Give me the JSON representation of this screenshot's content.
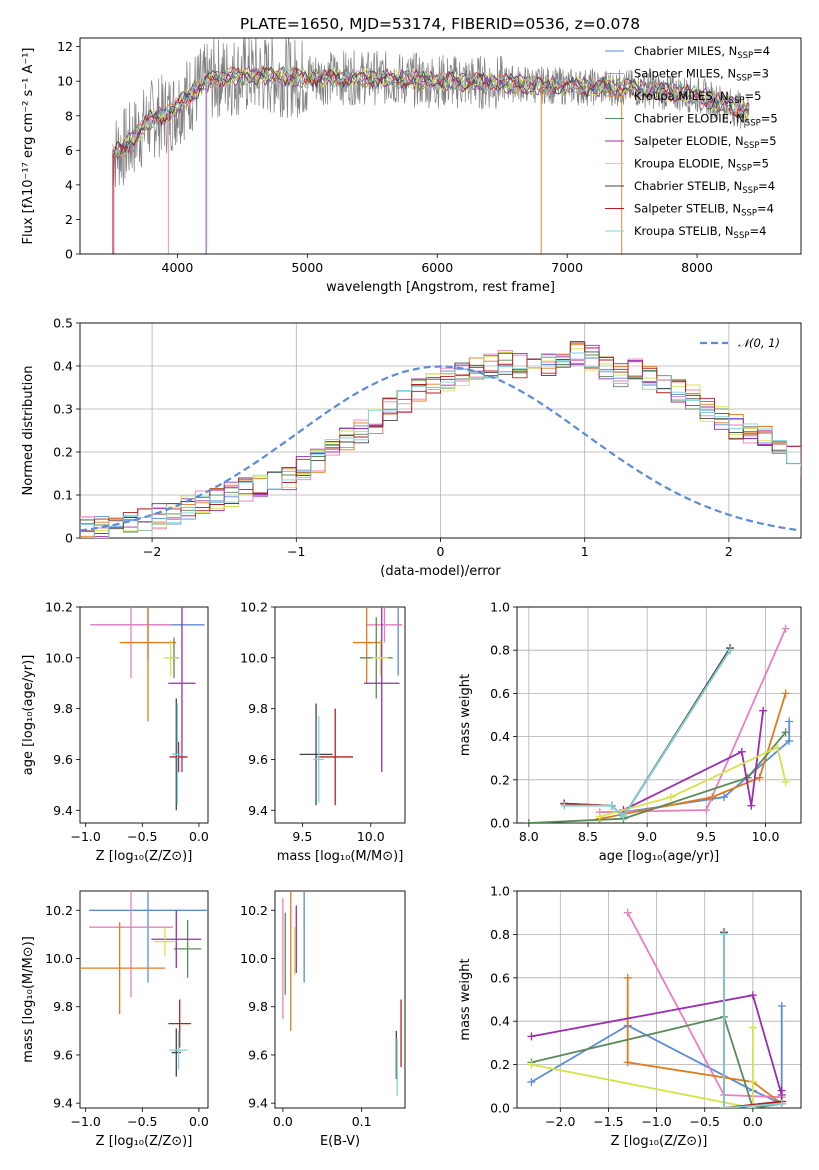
{
  "figure": {
    "title": "PLATE=1650, MJD=53174, FIBERID=0536, z=0.078"
  },
  "models": [
    {
      "label": "Chabrier MILES, N",
      "nssp": "4",
      "color": "#5b8bd9"
    },
    {
      "label": "Salpeter MILES, N",
      "nssp": "3",
      "color": "#e87fbf"
    },
    {
      "label": "Kroupa MILES, N",
      "nssp": "5",
      "color": "#e07b1f"
    },
    {
      "label": "Chabrier ELODIE, N",
      "nssp": "5",
      "color": "#5a8a5a"
    },
    {
      "label": "Salpeter ELODIE, N",
      "nssp": "5",
      "color": "#9a2db0"
    },
    {
      "label": "Kroupa ELODIE, N",
      "nssp": "5",
      "color": "#d4e34a"
    },
    {
      "label": "Chabrier STELIB, N",
      "nssp": "4",
      "color": "#444444"
    },
    {
      "label": "Salpeter STELIB, N",
      "nssp": "4",
      "color": "#b22222"
    },
    {
      "label": "Kroupa STELIB, N",
      "nssp": "4",
      "color": "#7fd3d8"
    }
  ],
  "legend_sub": "SSP",
  "chart_data": [
    {
      "id": "spectrum",
      "type": "line",
      "xlabel": "wavelength [Angstrom, rest frame]",
      "ylabel": "Flux [fλ10⁻¹⁷ erg cm⁻² s⁻¹ A⁻¹]",
      "xlim": [
        3250,
        8800
      ],
      "ylim": [
        0,
        12.5
      ],
      "xticks": [
        4000,
        5000,
        6000,
        7000,
        8000
      ],
      "yticks": [
        0,
        2,
        4,
        6,
        8,
        10,
        12
      ],
      "data_color": "#808080",
      "continuum": {
        "x": [
          3500,
          3600,
          3800,
          3950,
          4100,
          4300,
          4600,
          5000,
          5500,
          6000,
          6500,
          7000,
          7500,
          8000,
          8400
        ],
        "y": [
          5.8,
          6.2,
          7.8,
          8.2,
          9.3,
          10.2,
          10.4,
          10.2,
          10.2,
          10.0,
          9.9,
          9.7,
          9.6,
          9.2,
          8.2
        ]
      },
      "legend_placement": "upper-right"
    },
    {
      "id": "residuals",
      "type": "step",
      "xlabel": "(data-model)/error",
      "ylabel": "Normed distribution",
      "xlim": [
        -2.5,
        2.5
      ],
      "ylim": [
        0,
        0.5
      ],
      "xticks": [
        -2,
        -1,
        0,
        1,
        2
      ],
      "yticks": [
        0.0,
        0.1,
        0.2,
        0.3,
        0.4,
        0.5
      ],
      "grid": true,
      "reference_label": "𝒩(0, 1)",
      "reference_color": "#5b8bd9",
      "bins_start": -2.5,
      "bin_width": 0.1,
      "hist_base": [
        0.02,
        0.025,
        0.03,
        0.04,
        0.045,
        0.05,
        0.06,
        0.07,
        0.08,
        0.09,
        0.1,
        0.11,
        0.12,
        0.13,
        0.14,
        0.16,
        0.18,
        0.2,
        0.23,
        0.25,
        0.27,
        0.3,
        0.32,
        0.34,
        0.36,
        0.37,
        0.38,
        0.39,
        0.4,
        0.41,
        0.4,
        0.41,
        0.4,
        0.41,
        0.43,
        0.42,
        0.4,
        0.38,
        0.39,
        0.37,
        0.36,
        0.34,
        0.33,
        0.3,
        0.28,
        0.26,
        0.25,
        0.24,
        0.21,
        0.19,
        0.17,
        0.15,
        0.13,
        0.12,
        0.1,
        0.09,
        0.08,
        0.07,
        0.06,
        0.05,
        0.045,
        0.04,
        0.035,
        0.03,
        0.03,
        0.025,
        0.02,
        0.02,
        0.02,
        0.02,
        0.02,
        0.02
      ],
      "legend_placement": "upper-right"
    },
    {
      "id": "age-vs-z",
      "type": "errorbar",
      "xlabel": "Z [log₁₀(Z/Z⊙)]",
      "ylabel": "age  [log₁₀(age/yr)]",
      "xlim": [
        -1.05,
        0.08
      ],
      "ylim": [
        9.35,
        10.2
      ],
      "xticks": [
        -1.0,
        -0.5,
        0.0
      ],
      "xtick_labels": [
        "−1.0",
        "−0.5",
        "0.0"
      ],
      "yticks": [
        9.4,
        9.6,
        9.8,
        10.0,
        10.2
      ],
      "ytick_labels": [
        "9.4",
        "9.6",
        "9.8",
        "10.0",
        "10.2"
      ],
      "points": [
        {
          "m": 0,
          "x": -0.45,
          "xe": 0.5,
          "y": 10.13,
          "ye": 0.13
        },
        {
          "m": 1,
          "x": -0.6,
          "xe": 0.36,
          "y": 10.13,
          "ye": 0.21
        },
        {
          "m": 2,
          "x": -0.45,
          "xe": 0.25,
          "y": 10.06,
          "ye": 0.31
        },
        {
          "m": 3,
          "x": -0.22,
          "xe": 0.04,
          "y": 10.0,
          "ye": 0.08
        },
        {
          "m": 4,
          "x": -0.15,
          "xe": 0.12,
          "y": 9.9,
          "ye": 0.35
        },
        {
          "m": 5,
          "x": -0.25,
          "xe": 0.06,
          "y": 10.0,
          "ye": 0.07
        },
        {
          "m": 6,
          "x": -0.2,
          "xe": 0.03,
          "y": 9.62,
          "ye": 0.22
        },
        {
          "m": 7,
          "x": -0.18,
          "xe": 0.08,
          "y": 9.61,
          "ye": 0.06
        },
        {
          "m": 8,
          "x": -0.19,
          "xe": 0.05,
          "y": 9.62,
          "ye": 0.2
        }
      ]
    },
    {
      "id": "age-vs-mass",
      "type": "errorbar",
      "xlabel": "mass [log₁₀(M/M⊙)]",
      "ylabel": "",
      "xlim": [
        9.3,
        10.25
      ],
      "ylim": [
        9.35,
        10.2
      ],
      "xticks": [
        9.5,
        10.0
      ],
      "xtick_labels": [
        "9.5",
        "10.0"
      ],
      "yticks": [
        9.4,
        9.6,
        9.8,
        10.0,
        10.2
      ],
      "ytick_labels": [
        "9.4",
        "9.6",
        "9.8",
        "10.0",
        "10.2"
      ],
      "points": [
        {
          "m": 0,
          "x": 10.2,
          "xe": 0.02,
          "y": 10.13,
          "ye": 0.2
        },
        {
          "m": 1,
          "x": 10.1,
          "xe": 0.13,
          "y": 10.13,
          "ye": 0.07
        },
        {
          "m": 2,
          "x": 9.97,
          "xe": 0.1,
          "y": 10.06,
          "ye": 0.16
        },
        {
          "m": 3,
          "x": 10.04,
          "xe": 0.12,
          "y": 10.0,
          "ye": 0.16
        },
        {
          "m": 4,
          "x": 10.08,
          "xe": 0.13,
          "y": 9.9,
          "ye": 0.35
        },
        {
          "m": 5,
          "x": 10.07,
          "xe": 0.06,
          "y": 10.0,
          "ye": 0.07
        },
        {
          "m": 6,
          "x": 9.6,
          "xe": 0.12,
          "y": 9.62,
          "ye": 0.2
        },
        {
          "m": 7,
          "x": 9.74,
          "xe": 0.13,
          "y": 9.61,
          "ye": 0.19
        },
        {
          "m": 8,
          "x": 9.62,
          "xe": 0.04,
          "y": 9.6,
          "ye": 0.17
        }
      ]
    },
    {
      "id": "weight-vs-age",
      "type": "line",
      "xlabel": "age  [log₁₀(age/yr)]",
      "ylabel": "mass weight",
      "xlim": [
        7.9,
        10.3
      ],
      "ylim": [
        0,
        1.0
      ],
      "xticks": [
        8.0,
        8.5,
        9.0,
        9.5,
        10.0
      ],
      "xtick_labels": [
        "8.0",
        "8.5",
        "9.0",
        "9.5",
        "10.0"
      ],
      "yticks": [
        0.0,
        0.2,
        0.4,
        0.6,
        0.8,
        1.0
      ],
      "ytick_labels": [
        "0.0",
        "0.2",
        "0.4",
        "0.6",
        "0.8",
        "1.0"
      ],
      "grid": true,
      "series": [
        {
          "m": 0,
          "x": [
            8.8,
            9.65,
            10.2,
            10.2
          ],
          "y": [
            0.05,
            0.12,
            0.38,
            0.47
          ]
        },
        {
          "m": 1,
          "x": [
            8.6,
            9.5,
            10.17
          ],
          "y": [
            0.05,
            0.06,
            0.9
          ]
        },
        {
          "m": 2,
          "x": [
            8.6,
            9.55,
            9.95,
            10.17
          ],
          "y": [
            0.02,
            0.12,
            0.21,
            0.6
          ]
        },
        {
          "m": 3,
          "x": [
            8.0,
            8.8,
            9.85,
            10.17
          ],
          "y": [
            0.0,
            0.02,
            0.21,
            0.42
          ]
        },
        {
          "m": 4,
          "x": [
            8.8,
            9.8,
            9.88,
            9.98
          ],
          "y": [
            0.06,
            0.33,
            0.08,
            0.52
          ]
        },
        {
          "m": 5,
          "x": [
            8.6,
            9.2,
            10.1,
            10.17
          ],
          "y": [
            0.03,
            0.12,
            0.35,
            0.19
          ]
        },
        {
          "m": 6,
          "x": [
            8.3,
            8.7,
            8.8,
            9.7
          ],
          "y": [
            0.09,
            0.08,
            0.03,
            0.81
          ]
        },
        {
          "m": 7,
          "x": [
            8.3,
            8.7,
            8.8,
            9.7
          ],
          "y": [
            0.09,
            0.08,
            0.03,
            0.8
          ]
        },
        {
          "m": 8,
          "x": [
            8.3,
            8.7,
            8.8,
            9.7
          ],
          "y": [
            0.08,
            0.08,
            0.03,
            0.8
          ]
        }
      ]
    },
    {
      "id": "mass-vs-z",
      "type": "errorbar",
      "xlabel": "Z [log₁₀(Z/Z⊙)]",
      "ylabel": "mass [log₁₀(M/M⊙)]",
      "xlim": [
        -1.05,
        0.08
      ],
      "ylim": [
        9.38,
        10.28
      ],
      "xticks": [
        -1.0,
        -0.5,
        0.0
      ],
      "xtick_labels": [
        "−1.0",
        "−0.5",
        "0.0"
      ],
      "yticks": [
        9.4,
        9.6,
        9.8,
        10.0,
        10.2
      ],
      "ytick_labels": [
        "9.4",
        "9.6",
        "9.8",
        "10.0",
        "10.2"
      ],
      "points": [
        {
          "m": 0,
          "x": -0.45,
          "xe": 0.52,
          "y": 10.2,
          "ye": 0.3
        },
        {
          "m": 1,
          "x": -0.6,
          "xe": 0.37,
          "y": 10.13,
          "ye": 0.29
        },
        {
          "m": 2,
          "x": -0.7,
          "xe": 0.4,
          "y": 9.96,
          "ye": 0.19
        },
        {
          "m": 3,
          "x": -0.1,
          "xe": 0.12,
          "y": 10.04,
          "ye": 0.12
        },
        {
          "m": 4,
          "x": -0.2,
          "xe": 0.22,
          "y": 10.08,
          "ye": 0.12
        },
        {
          "m": 5,
          "x": -0.3,
          "xe": 0.1,
          "y": 10.07,
          "ye": 0.06
        },
        {
          "m": 6,
          "x": -0.2,
          "xe": 0.04,
          "y": 9.61,
          "ye": 0.1
        },
        {
          "m": 7,
          "x": -0.17,
          "xe": 0.1,
          "y": 9.73,
          "ye": 0.1
        },
        {
          "m": 8,
          "x": -0.18,
          "xe": 0.08,
          "y": 9.62,
          "ye": 0.08
        }
      ]
    },
    {
      "id": "mass-vs-ebv",
      "type": "errorbar",
      "xlabel": "E(B-V)",
      "ylabel": "",
      "xlim": [
        -0.01,
        0.155
      ],
      "ylim": [
        9.38,
        10.28
      ],
      "xticks": [
        0.0,
        0.1
      ],
      "xtick_labels": [
        "0.0",
        "0.1"
      ],
      "yticks": [
        9.4,
        9.6,
        9.8,
        10.0,
        10.2
      ],
      "ytick_labels": [
        "9.4",
        "9.6",
        "9.8",
        "10.0",
        "10.2"
      ],
      "points": [
        {
          "m": 0,
          "x": 0.027,
          "xe": 0,
          "y": 10.1,
          "ye": 0.2
        },
        {
          "m": 1,
          "x": 0.0,
          "xe": 0,
          "y": 10.0,
          "ye": 0.25
        },
        {
          "m": 2,
          "x": 0.01,
          "xe": 0,
          "y": 10.0,
          "ye": 0.3
        },
        {
          "m": 3,
          "x": 0.003,
          "xe": 0,
          "y": 10.02,
          "ye": 0.17
        },
        {
          "m": 4,
          "x": 0.017,
          "xe": 0,
          "y": 10.08,
          "ye": 0.14
        },
        {
          "m": 5,
          "x": 0.015,
          "xe": 0,
          "y": 10.03,
          "ye": 0.1
        },
        {
          "m": 6,
          "x": 0.144,
          "xe": 0,
          "y": 9.6,
          "ye": 0.1
        },
        {
          "m": 7,
          "x": 0.15,
          "xe": 0,
          "y": 9.69,
          "ye": 0.14
        },
        {
          "m": 8,
          "x": 0.145,
          "xe": 0,
          "y": 9.55,
          "ye": 0.12
        }
      ]
    },
    {
      "id": "weight-vs-z",
      "type": "line",
      "xlabel": "Z [log₁₀(Z/Z⊙)]",
      "ylabel": "mass weight",
      "xlim": [
        -2.45,
        0.5
      ],
      "ylim": [
        0,
        1.0
      ],
      "xticks": [
        -2.0,
        -1.5,
        -1.0,
        -0.5,
        0.0
      ],
      "xtick_labels": [
        "−2.0",
        "−1.5",
        "−1.0",
        "−0.5",
        "0.0"
      ],
      "yticks": [
        0.0,
        0.2,
        0.4,
        0.6,
        0.8,
        1.0
      ],
      "ytick_labels": [
        "0.0",
        "0.2",
        "0.4",
        "0.6",
        "0.8",
        "1.0"
      ],
      "grid": true,
      "series": [
        {
          "m": 0,
          "x": [
            -2.3,
            -1.3,
            0.0,
            0.3,
            0.3
          ],
          "y": [
            0.12,
            0.38,
            0.08,
            0.02,
            0.47
          ]
        },
        {
          "m": 1,
          "x": [
            -1.3,
            -0.3,
            0.3
          ],
          "y": [
            0.9,
            0.06,
            0.05
          ]
        },
        {
          "m": 2,
          "x": [
            -1.3,
            -1.3,
            0.0,
            0.3
          ],
          "y": [
            0.6,
            0.21,
            0.12,
            0.02
          ]
        },
        {
          "m": 3,
          "x": [
            -2.3,
            -0.3,
            0.0,
            0.3
          ],
          "y": [
            0.21,
            0.42,
            0.0,
            0.02
          ]
        },
        {
          "m": 4,
          "x": [
            -2.3,
            0.0,
            0.3,
            0.3
          ],
          "y": [
            0.33,
            0.52,
            0.06,
            0.08
          ]
        },
        {
          "m": 5,
          "x": [
            -2.3,
            0.0,
            0.0,
            0.0
          ],
          "y": [
            0.2,
            0.0,
            0.37,
            0.12
          ]
        },
        {
          "m": 6,
          "x": [
            -0.3,
            -0.3,
            0.3
          ],
          "y": [
            0.81,
            0.0,
            0.03
          ]
        },
        {
          "m": 7,
          "x": [
            -0.3,
            -0.3,
            0.3
          ],
          "y": [
            0.8,
            0.0,
            0.03
          ]
        },
        {
          "m": 8,
          "x": [
            -0.3,
            -0.3,
            0.3
          ],
          "y": [
            0.8,
            0.0,
            0.02
          ]
        }
      ]
    }
  ]
}
